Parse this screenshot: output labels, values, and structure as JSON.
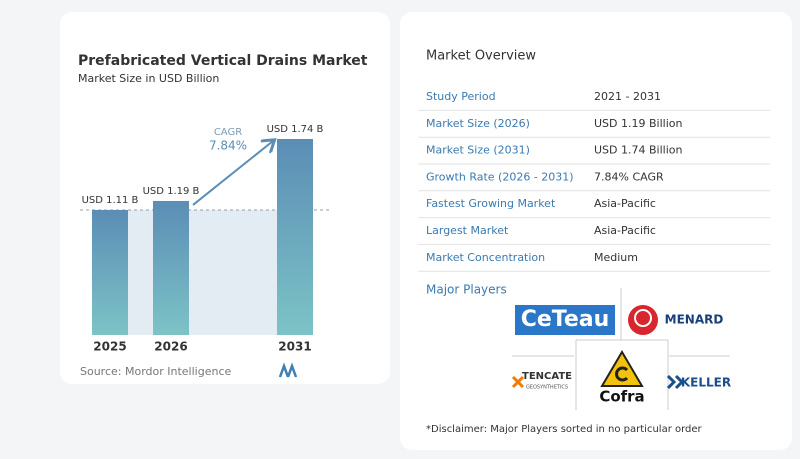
{
  "chart_data": {
    "type": "bar",
    "title": "Prefabricated Vertical Drains Market",
    "subtitle": "Market Size in USD Billion",
    "categories": [
      "2025",
      "2026",
      "2031"
    ],
    "values": [
      1.11,
      1.19,
      1.74
    ],
    "value_labels": [
      "USD 1.11 B",
      "USD 1.19 B",
      "USD 1.74 B"
    ],
    "annotation": {
      "label": "CAGR",
      "value": "7.84%"
    },
    "source": "Source: Mordor Intelligence",
    "color": [
      "#5b8db5",
      "#7cc3c6"
    ]
  },
  "overview": {
    "title": "Market Overview",
    "rows": [
      [
        "Study Period",
        "2021 - 2031"
      ],
      [
        "Market Size (2026)",
        "USD 1.19 Billion"
      ],
      [
        "Market Size (2031)",
        "USD 1.74 Billion"
      ],
      [
        "Growth Rate (2026 - 2031)",
        "7.84% CAGR"
      ],
      [
        "Fastest Growing Market",
        "Asia-Pacific"
      ],
      [
        "Largest Market",
        "Asia-Pacific"
      ],
      [
        "Market Concentration",
        "Medium"
      ]
    ],
    "players_title": "Major Players",
    "players": [
      {
        "name": "CeTeau"
      },
      {
        "name": "MENARD"
      },
      {
        "name": "TENCATE",
        "sub": "GEOSYNTHETICS"
      },
      {
        "name": "Cofra"
      },
      {
        "name": "KELLER"
      }
    ],
    "disclaimer": "*Disclaimer: Major Players sorted in no particular order"
  }
}
